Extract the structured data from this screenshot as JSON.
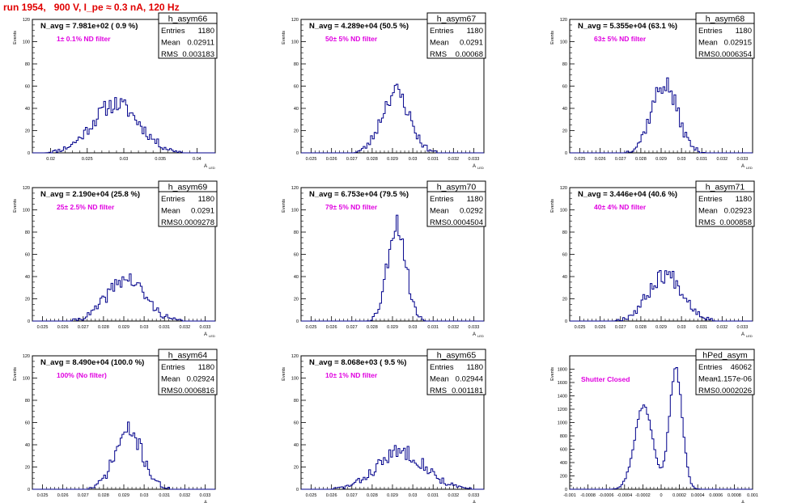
{
  "page": {
    "title": "run 1954,   900 V, I_pe ≈ 0.3 nA, 120 Hz",
    "stat_labels": {
      "entries": "Entries",
      "mean": "Mean",
      "rms": "RMS"
    },
    "y_axis_label": "Events",
    "x_axis_label": "A",
    "x_axis_label_sub": "LED",
    "colors": {
      "histogram": "#00008b",
      "annotation": "#e000e0",
      "title": "#e00000",
      "axis": "#000000"
    }
  },
  "chart_data": [
    {
      "type": "histogram",
      "name": "h_asym66",
      "n_avg_label": "N_avg = 7.981e+02 ( 0.9 %)",
      "note": "1± 0.1% ND filter",
      "entries": "1180",
      "mean": "0.02911",
      "rms": "0.003183",
      "xlim": [
        0.0175,
        0.0425
      ],
      "ylim": [
        0,
        120
      ],
      "xticks": [
        0.02,
        0.025,
        0.03,
        0.035,
        0.04
      ],
      "xtick_labels": [
        "0.02",
        "0.025",
        "0.03",
        "0.035",
        "0.04"
      ],
      "yticks": [
        0,
        20,
        40,
        60,
        80,
        100,
        120
      ],
      "peaks": [
        {
          "mu": 0.0289,
          "sigma": 0.0032,
          "height": 44
        }
      ],
      "seed": 11
    },
    {
      "type": "histogram",
      "name": "h_asym67",
      "n_avg_label": "N_avg = 4.289e+04 (50.5 %)",
      "note": "50± 5% ND filter",
      "entries": "1180",
      "mean": "0.0291",
      "rms": "0.00068",
      "xlim": [
        0.0245,
        0.0335
      ],
      "ylim": [
        0,
        120
      ],
      "xticks": [
        0.025,
        0.026,
        0.027,
        0.028,
        0.029,
        0.03,
        0.031,
        0.032,
        0.033
      ],
      "xtick_labels": [
        "0.025",
        "0.026",
        "0.027",
        "0.028",
        "0.029",
        "0.03",
        "0.031",
        "0.032",
        "0.033"
      ],
      "yticks": [
        0,
        20,
        40,
        60,
        80,
        100,
        120
      ],
      "peaks": [
        {
          "mu": 0.02915,
          "sigma": 0.00068,
          "height": 55
        }
      ],
      "seed": 23
    },
    {
      "type": "histogram",
      "name": "h_asym68",
      "n_avg_label": "N_avg = 5.355e+04 (63.1 %)",
      "note": "63± 5% ND filter",
      "entries": "1180",
      "mean": "0.02915",
      "rms": "0.0006354",
      "xlim": [
        0.0245,
        0.0335
      ],
      "ylim": [
        0,
        120
      ],
      "xticks": [
        0.025,
        0.026,
        0.027,
        0.028,
        0.029,
        0.03,
        0.031,
        0.032,
        0.033
      ],
      "xtick_labels": [
        "0.025",
        "0.026",
        "0.027",
        "0.028",
        "0.029",
        "0.03",
        "0.031",
        "0.032",
        "0.033"
      ],
      "yticks": [
        0,
        20,
        40,
        60,
        80,
        100,
        120
      ],
      "peaks": [
        {
          "mu": 0.02915,
          "sigma": 0.00064,
          "height": 62
        }
      ],
      "seed": 37
    },
    {
      "type": "histogram",
      "name": "h_asym69",
      "n_avg_label": "N_avg = 2.190e+04 (25.8 %)",
      "note": "25± 2.5% ND filter",
      "entries": "1180",
      "mean": "0.0291",
      "rms": "0.0009278",
      "xlim": [
        0.0245,
        0.0335
      ],
      "ylim": [
        0,
        120
      ],
      "xticks": [
        0.025,
        0.026,
        0.027,
        0.028,
        0.029,
        0.03,
        0.031,
        0.032,
        0.033
      ],
      "xtick_labels": [
        "0.025",
        "0.026",
        "0.027",
        "0.028",
        "0.029",
        "0.03",
        "0.031",
        "0.032",
        "0.033"
      ],
      "yticks": [
        0,
        20,
        40,
        60,
        80,
        100,
        120
      ],
      "peaks": [
        {
          "mu": 0.0291,
          "sigma": 0.00093,
          "height": 38
        }
      ],
      "seed": 41
    },
    {
      "type": "histogram",
      "name": "h_asym70",
      "n_avg_label": "N_avg = 6.753e+04 (79.5 %)",
      "note": "79± 5% ND filter",
      "entries": "1180",
      "mean": "0.0292",
      "rms": "0.0004504",
      "xlim": [
        0.0245,
        0.0335
      ],
      "ylim": [
        0,
        120
      ],
      "xticks": [
        0.025,
        0.026,
        0.027,
        0.028,
        0.029,
        0.03,
        0.031,
        0.032,
        0.033
      ],
      "xtick_labels": [
        "0.025",
        "0.026",
        "0.027",
        "0.028",
        "0.029",
        "0.03",
        "0.031",
        "0.032",
        "0.033"
      ],
      "yticks": [
        0,
        20,
        40,
        60,
        80,
        100,
        120
      ],
      "peaks": [
        {
          "mu": 0.0292,
          "sigma": 0.00045,
          "height": 88
        }
      ],
      "seed": 53
    },
    {
      "type": "histogram",
      "name": "h_asym71",
      "n_avg_label": "N_avg = 3.446e+04 (40.6 %)",
      "note": "40± 4% ND filter",
      "entries": "1180",
      "mean": "0.02923",
      "rms": "0.000858",
      "xlim": [
        0.0245,
        0.0335
      ],
      "ylim": [
        0,
        120
      ],
      "xticks": [
        0.025,
        0.026,
        0.027,
        0.028,
        0.029,
        0.03,
        0.031,
        0.032,
        0.033
      ],
      "xtick_labels": [
        "0.025",
        "0.026",
        "0.027",
        "0.028",
        "0.029",
        "0.03",
        "0.031",
        "0.032",
        "0.033"
      ],
      "yticks": [
        0,
        20,
        40,
        60,
        80,
        100,
        120
      ],
      "peaks": [
        {
          "mu": 0.02923,
          "sigma": 0.00086,
          "height": 42
        }
      ],
      "seed": 67
    },
    {
      "type": "histogram",
      "name": "h_asym64",
      "n_avg_label": "N_avg = 8.490e+04 (100.0 %)",
      "note": "100% (No filter)",
      "entries": "1180",
      "mean": "0.02924",
      "rms": "0.0006816",
      "xlim": [
        0.0245,
        0.0335
      ],
      "ylim": [
        0,
        120
      ],
      "xticks": [
        0.025,
        0.026,
        0.027,
        0.028,
        0.029,
        0.03,
        0.031,
        0.032,
        0.033
      ],
      "xtick_labels": [
        "0.025",
        "0.026",
        "0.027",
        "0.028",
        "0.029",
        "0.03",
        "0.031",
        "0.032",
        "0.033"
      ],
      "yticks": [
        0,
        20,
        40,
        60,
        80,
        100,
        120
      ],
      "peaks": [
        {
          "mu": 0.02924,
          "sigma": 0.00068,
          "height": 52
        }
      ],
      "seed": 71
    },
    {
      "type": "histogram",
      "name": "h_asym65",
      "n_avg_label": "N_avg = 8.068e+03 ( 9.5 %)",
      "note": "10± 1% ND filter",
      "entries": "1180",
      "mean": "0.02944",
      "rms": "0.001181",
      "xlim": [
        0.0245,
        0.0335
      ],
      "ylim": [
        0,
        120
      ],
      "xticks": [
        0.025,
        0.026,
        0.027,
        0.028,
        0.029,
        0.03,
        0.031,
        0.032,
        0.033
      ],
      "xtick_labels": [
        "0.025",
        "0.026",
        "0.027",
        "0.028",
        "0.029",
        "0.03",
        "0.031",
        "0.032",
        "0.033"
      ],
      "yticks": [
        0,
        20,
        40,
        60,
        80,
        100,
        120
      ],
      "peaks": [
        {
          "mu": 0.02944,
          "sigma": 0.00118,
          "height": 34
        }
      ],
      "seed": 83
    },
    {
      "type": "histogram",
      "name": "hPed_asym",
      "n_avg_label": "",
      "note": "Shutter Closed",
      "entries": "46062",
      "mean": "-1.157e-06",
      "rms": "0.0002026",
      "xlim": [
        -0.001,
        0.001
      ],
      "ylim": [
        0,
        2000
      ],
      "xticks": [
        -0.001,
        -0.0008,
        -0.0006,
        -0.0004,
        -0.0002,
        0,
        0.0002,
        0.0004,
        0.0006,
        0.0008,
        0.001
      ],
      "xtick_labels": [
        "-0.001",
        "-0.0008",
        "-0.0006",
        "-0.0004",
        "-0.0002",
        "0",
        "0.0002",
        "0.0004",
        "0.0006",
        "0.0008",
        "0.001"
      ],
      "yticks": [
        0,
        200,
        400,
        600,
        800,
        1000,
        1200,
        1400,
        1600,
        1800
      ],
      "peaks": [
        {
          "mu": -0.00019,
          "sigma": 0.0001,
          "height": 1250
        },
        {
          "mu": 0.00016,
          "sigma": 7e-05,
          "height": 1800
        }
      ],
      "seed": 97
    }
  ]
}
